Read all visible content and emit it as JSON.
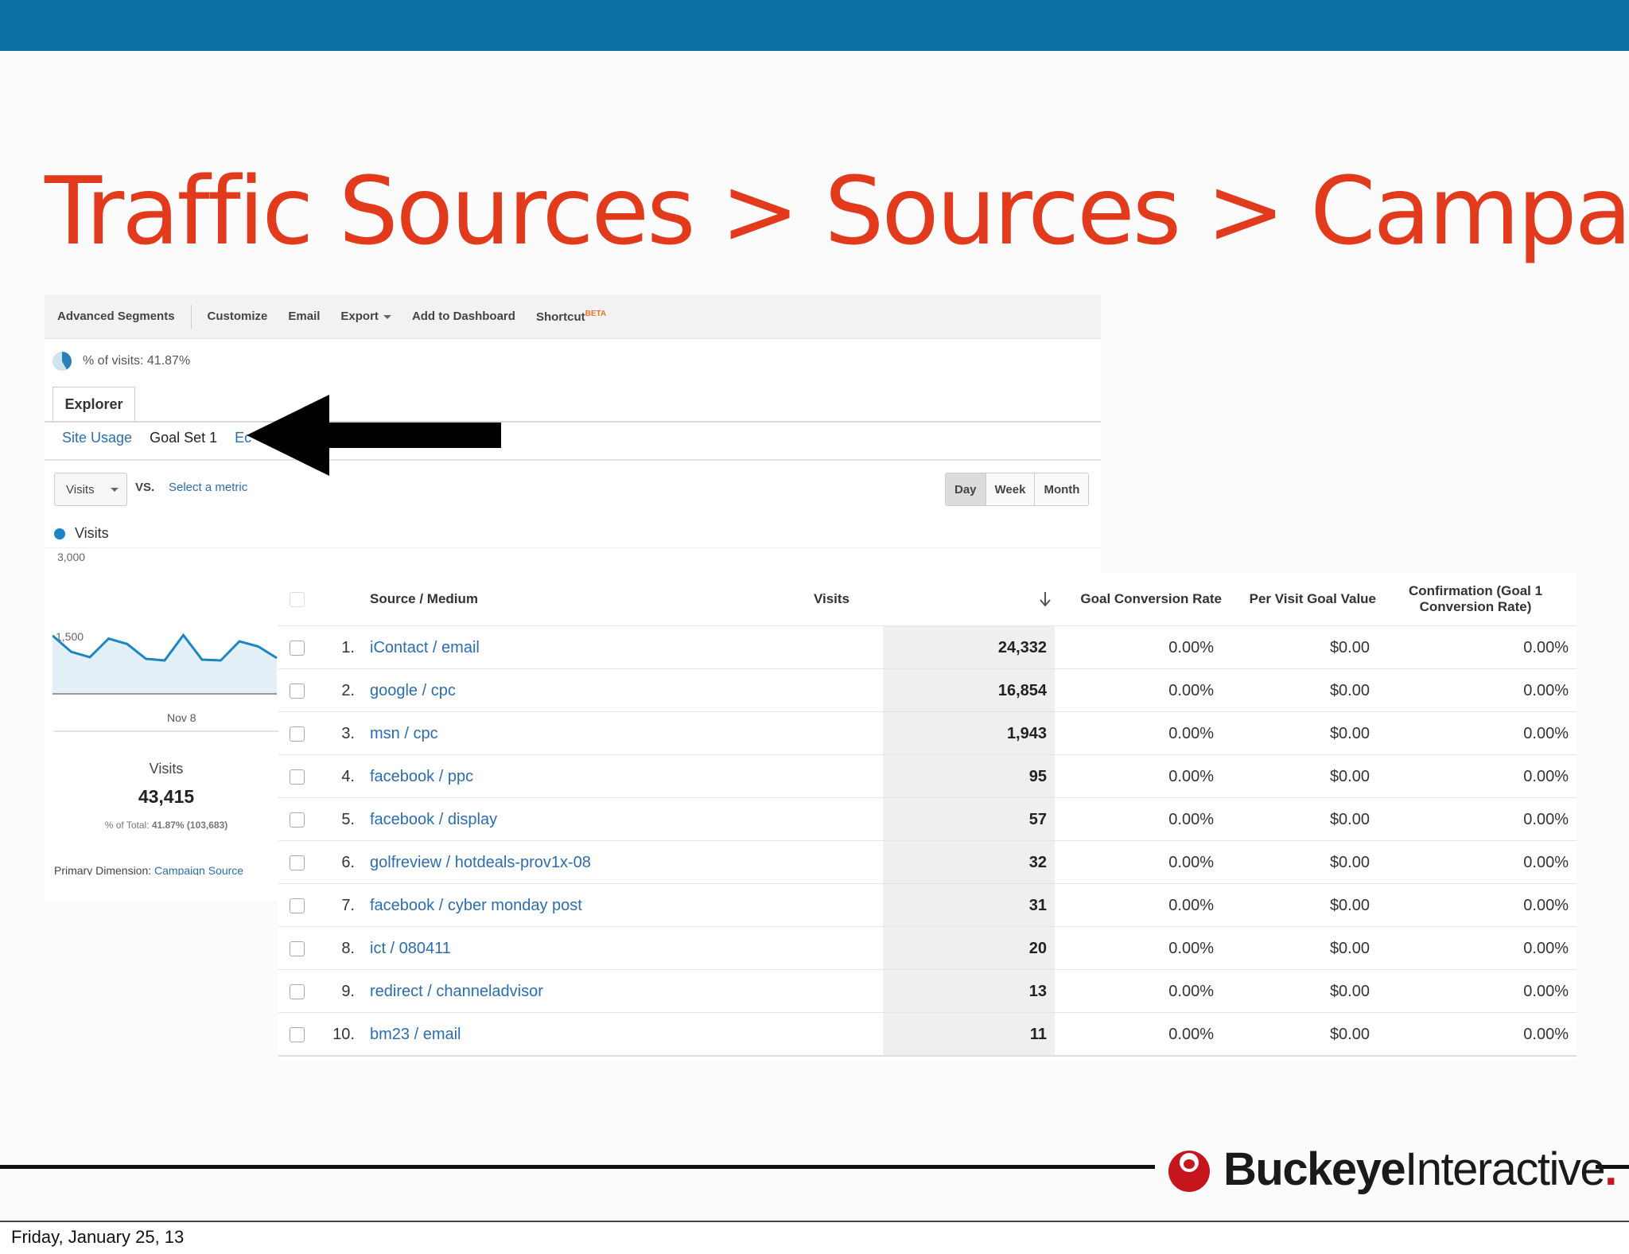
{
  "slide": {
    "title": "Traffic Sources > Sources > Campaigns",
    "colors": {
      "topbar": "#0b6fa3",
      "title": "#e23a1c",
      "link": "#2a6db0",
      "series": "#1a86c4"
    }
  },
  "toolbar": {
    "advanced_segments": "Advanced Segments",
    "customize": "Customize",
    "email": "Email",
    "export": "Export",
    "add_to_dashboard": "Add to Dashboard",
    "shortcut": "Shortcut",
    "beta": "BETA"
  },
  "segment": {
    "label": "% of visits: 41.87%"
  },
  "tabs": {
    "explorer": "Explorer"
  },
  "subtabs": {
    "site_usage": "Site Usage",
    "goal_set_1": "Goal Set 1",
    "ecommerce": "Ec"
  },
  "controls": {
    "metric": "Visits",
    "vs": "VS.",
    "select_metric": "Select a metric",
    "periods": [
      "Day",
      "Week",
      "Month"
    ]
  },
  "chart_data": {
    "type": "line",
    "series": [
      {
        "name": "Visits",
        "values": [
          1500,
          1080,
          940,
          1420,
          1280,
          900,
          860,
          1510,
          880,
          860,
          1350,
          1220,
          920
        ]
      }
    ],
    "yticks": [
      "3,000",
      "1,500"
    ],
    "xticks": [
      "Nov 8"
    ],
    "ylim": [
      0,
      3000
    ],
    "grid": false,
    "legend": "top-left"
  },
  "summary": {
    "label": "Visits",
    "value": "43,415",
    "pct_prefix": "% of Total:",
    "pct_value": "41.87% (103,683)"
  },
  "primary_dimension": {
    "label": "Primary Dimension:",
    "values": "Campaign  Source"
  },
  "table": {
    "columns": {
      "source_medium": "Source / Medium",
      "visits": "Visits",
      "goal_conversion_rate": "Goal Conversion Rate",
      "per_visit_goal_value": "Per Visit Goal Value",
      "confirmation_line1": "Confirmation (Goal 1",
      "confirmation_line2": "Conversion Rate)"
    },
    "rows": [
      {
        "idx": "1.",
        "source": "iContact / email",
        "visits": "24,332",
        "gcr": "0.00%",
        "pvgv": "$0.00",
        "conf": "0.00%"
      },
      {
        "idx": "2.",
        "source": "google / cpc",
        "visits": "16,854",
        "gcr": "0.00%",
        "pvgv": "$0.00",
        "conf": "0.00%"
      },
      {
        "idx": "3.",
        "source": "msn / cpc",
        "visits": "1,943",
        "gcr": "0.00%",
        "pvgv": "$0.00",
        "conf": "0.00%"
      },
      {
        "idx": "4.",
        "source": "facebook / ppc",
        "visits": "95",
        "gcr": "0.00%",
        "pvgv": "$0.00",
        "conf": "0.00%"
      },
      {
        "idx": "5.",
        "source": "facebook / display",
        "visits": "57",
        "gcr": "0.00%",
        "pvgv": "$0.00",
        "conf": "0.00%"
      },
      {
        "idx": "6.",
        "source": "golfreview / hotdeals-prov1x-08",
        "visits": "32",
        "gcr": "0.00%",
        "pvgv": "$0.00",
        "conf": "0.00%"
      },
      {
        "idx": "7.",
        "source": "facebook / cyber monday post",
        "visits": "31",
        "gcr": "0.00%",
        "pvgv": "$0.00",
        "conf": "0.00%"
      },
      {
        "idx": "8.",
        "source": "ict / 080411",
        "visits": "20",
        "gcr": "0.00%",
        "pvgv": "$0.00",
        "conf": "0.00%"
      },
      {
        "idx": "9.",
        "source": "redirect / channeladvisor",
        "visits": "13",
        "gcr": "0.00%",
        "pvgv": "$0.00",
        "conf": "0.00%"
      },
      {
        "idx": "10.",
        "source": "bm23 / email",
        "visits": "11",
        "gcr": "0.00%",
        "pvgv": "$0.00",
        "conf": "0.00%"
      }
    ]
  },
  "logo": {
    "bold": "Buckeye",
    "light": "Interactive",
    "dot": "."
  },
  "caption": {
    "date": "Friday, January 25, 13"
  }
}
